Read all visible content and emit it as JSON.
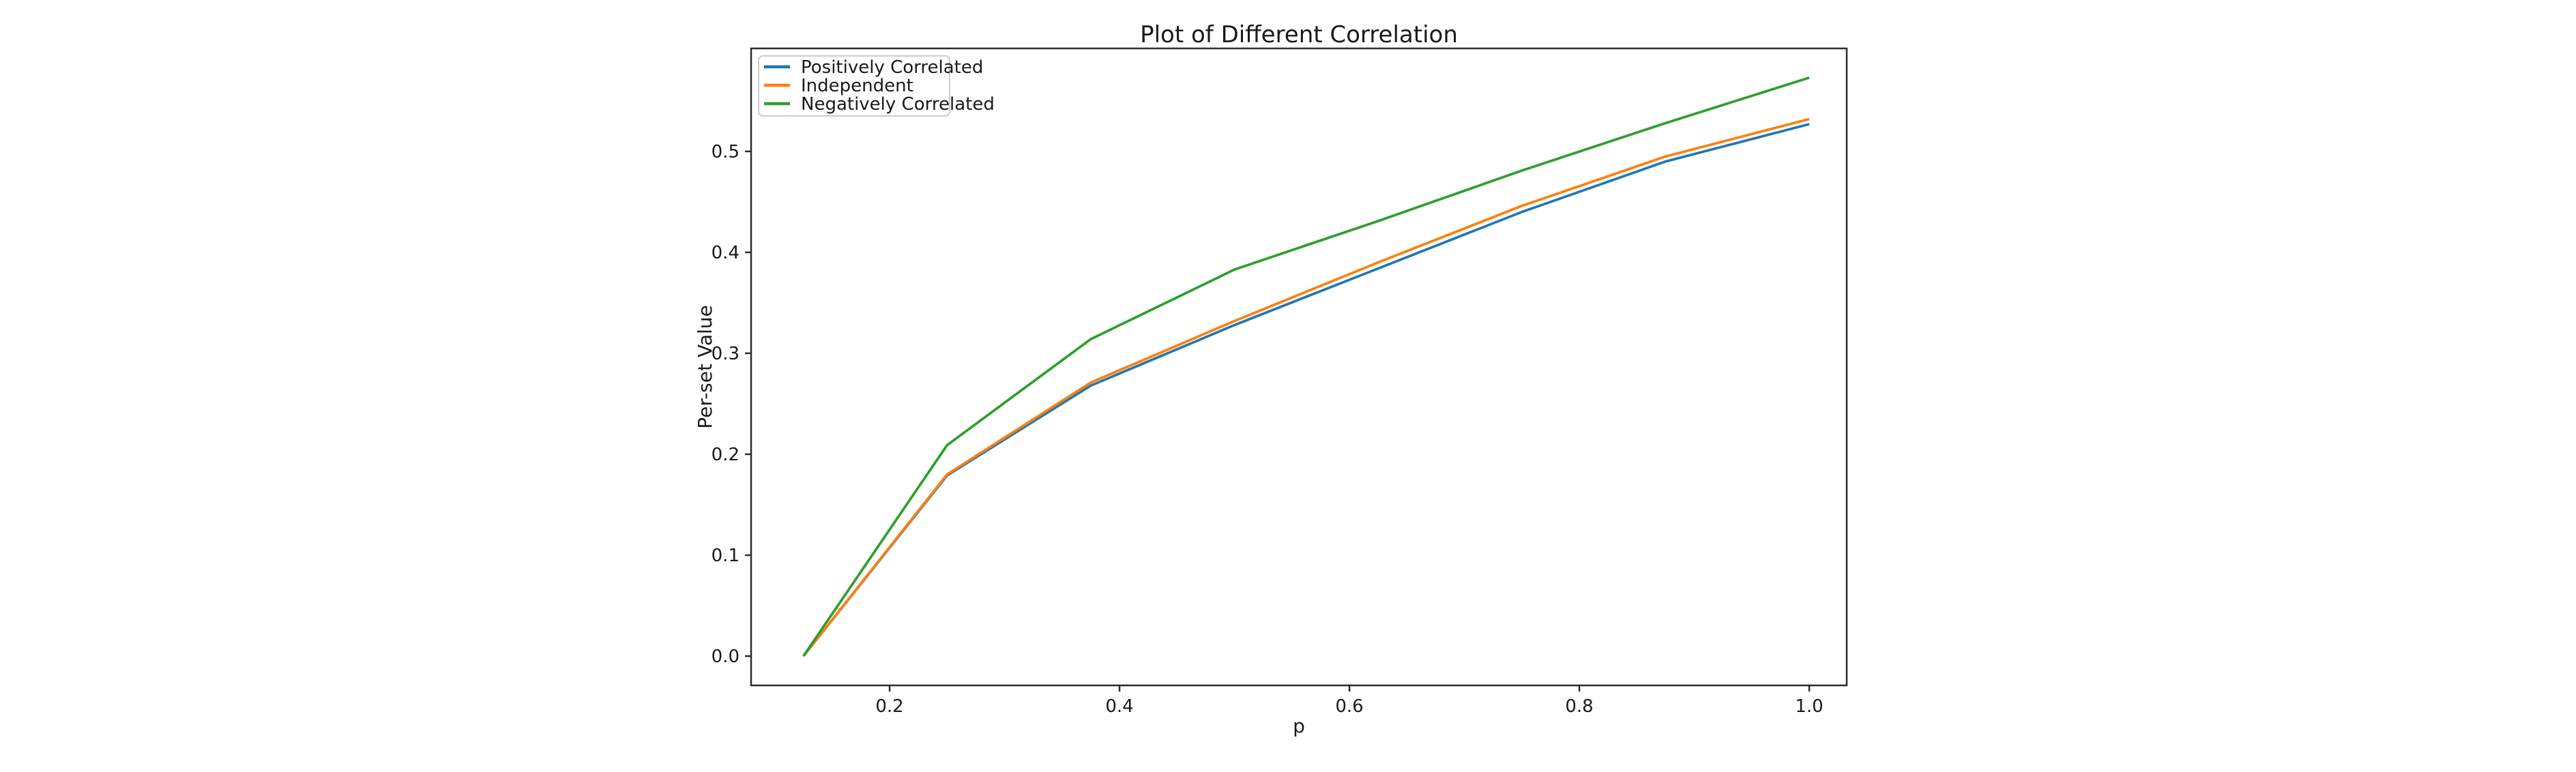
{
  "chart_data": {
    "type": "line",
    "title": "Plot of Different Correlation",
    "xlabel": "p",
    "ylabel": "Per-set Value",
    "x": [
      0.125,
      0.25,
      0.375,
      0.5,
      0.625,
      0.75,
      0.875,
      1.0
    ],
    "series": [
      {
        "name": "Positively Correlated",
        "color": "#1f77b4",
        "values": [
          0.0,
          0.179,
          0.268,
          0.328,
          0.384,
          0.44,
          0.49,
          0.527
        ]
      },
      {
        "name": "Independent",
        "color": "#ff7f0e",
        "values": [
          0.0,
          0.18,
          0.271,
          0.332,
          0.39,
          0.446,
          0.495,
          0.532
        ]
      },
      {
        "name": "Negatively Correlated",
        "color": "#2ca02c",
        "values": [
          0.0,
          0.209,
          0.314,
          0.383,
          0.431,
          0.481,
          0.528,
          0.573
        ]
      }
    ],
    "x_ticks": [
      0.2,
      0.4,
      0.6,
      0.8,
      1.0
    ],
    "x_tick_labels": [
      "0.2",
      "0.4",
      "0.6",
      "0.8",
      "1.0"
    ],
    "y_ticks": [
      0.0,
      0.1,
      0.2,
      0.3,
      0.4,
      0.5
    ],
    "y_tick_labels": [
      "0.0",
      "0.1",
      "0.2",
      "0.3",
      "0.4",
      "0.5"
    ],
    "xlim": [
      0.0795,
      1.0326
    ],
    "ylim": [
      -0.029,
      0.602
    ],
    "grid": false,
    "legend_position": "upper-left",
    "background_color": "#ffffff"
  }
}
